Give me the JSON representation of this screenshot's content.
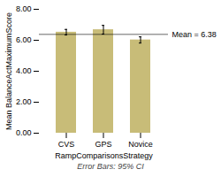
{
  "chart_data": {
    "type": "bar",
    "categories": [
      "CVS",
      "GPS",
      "Novice"
    ],
    "values": [
      6.52,
      6.68,
      6.02
    ],
    "errors": [
      0.18,
      0.28,
      0.2
    ],
    "color": "#c8bc78",
    "reference_line": {
      "y": 6.38,
      "label": "Mean = 6.38"
    },
    "xlabel": "RampComparisonsStrategy",
    "ylabel": "Mean BalanceActMaximumScore",
    "footnote": "Error Bars: 95% CI",
    "ylim": [
      0.0,
      8.0
    ],
    "yticks": [
      {
        "value": 0,
        "label": "0.00"
      },
      {
        "value": 2,
        "label": "2.00"
      },
      {
        "value": 4,
        "label": "4.00"
      },
      {
        "value": 6,
        "label": "6.00"
      },
      {
        "value": 8,
        "label": "8.00"
      }
    ],
    "grid": false
  }
}
